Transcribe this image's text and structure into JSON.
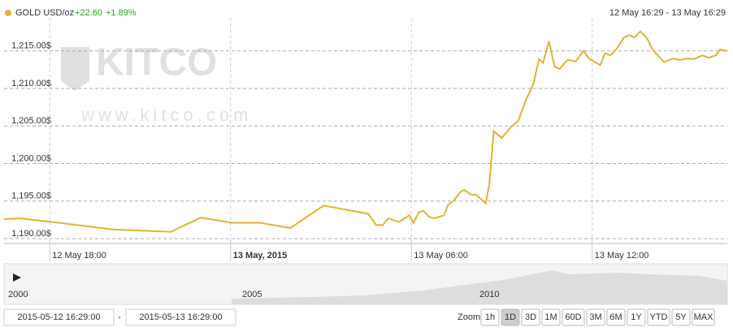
{
  "chart_data": {
    "type": "line",
    "change": "+22.60",
    "change_percent": "+1.89%",
    "range_label": "12 May 16:29 - 13 May 16:29",
    "x": [
      "2015-05-12 16:29",
      "2015-05-12 17:01",
      "2015-05-12 18:06",
      "2015-05-12 20:08",
      "2015-05-12 22:01",
      "2015-05-12 23:01",
      "2015-05-13 00:03",
      "2015-05-13 00:59",
      "2015-05-13 01:59",
      "2015-05-13 03:05",
      "2015-05-13 04:34",
      "2015-05-13 04:50",
      "2015-05-13 05:03",
      "2015-05-13 05:14",
      "2015-05-13 05:35",
      "2015-05-13 05:56",
      "2015-05-13 06:04",
      "2015-05-13 06:15",
      "2015-05-13 06:24",
      "2015-05-13 06:35",
      "2015-05-13 06:45",
      "2015-05-13 07:05",
      "2015-05-13 07:13",
      "2015-05-13 07:24",
      "2015-05-13 07:37",
      "2015-05-13 07:45",
      "2015-05-13 07:57",
      "2015-05-13 08:10",
      "2015-05-13 08:28",
      "2015-05-13 08:35",
      "2015-05-13 08:44",
      "2015-05-13 09:00",
      "2015-05-13 09:17",
      "2015-05-13 09:33",
      "2015-05-13 09:47",
      "2015-05-13 10:03",
      "2015-05-13 10:14",
      "2015-05-13 10:22",
      "2015-05-13 10:34",
      "2015-05-13 10:45",
      "2015-05-13 10:55",
      "2015-05-13 11:11",
      "2015-05-13 11:27",
      "2015-05-13 11:43",
      "2015-05-13 11:53",
      "2015-05-13 12:16",
      "2015-05-13 12:26",
      "2015-05-13 12:36",
      "2015-05-13 12:49",
      "2015-05-13 13:03",
      "2015-05-13 13:14",
      "2015-05-13 13:24",
      "2015-05-13 13:36",
      "2015-05-13 13:49",
      "2015-05-13 14:00",
      "2015-05-13 14:08",
      "2015-05-13 14:23",
      "2015-05-13 14:41",
      "2015-05-13 14:54",
      "2015-05-13 15:08",
      "2015-05-13 15:23",
      "2015-05-13 15:39",
      "2015-05-13 15:52",
      "2015-05-13 16:06",
      "2015-05-13 16:15",
      "2015-05-13 16:24",
      "2015-05-13 16:29"
    ],
    "series": [
      {
        "name": "GOLD USD/oz",
        "color": "#e2b331",
        "values": [
          1192.6,
          1192.7,
          1192.2,
          1191.2,
          1190.9,
          1192.8,
          1192.1,
          1192.1,
          1191.4,
          1194.4,
          1193.3,
          1191.8,
          1191.8,
          1192.7,
          1192.2,
          1193.1,
          1192.1,
          1193.5,
          1193.7,
          1192.9,
          1192.7,
          1193.1,
          1194.5,
          1195.0,
          1196.2,
          1196.5,
          1195.9,
          1195.8,
          1194.7,
          1197.2,
          1204.3,
          1203.4,
          1204.8,
          1205.7,
          1208.3,
          1210.6,
          1213.9,
          1213.4,
          1216.3,
          1212.9,
          1212.6,
          1213.8,
          1213.6,
          1215.0,
          1214.0,
          1213.1,
          1214.7,
          1214.4,
          1215.3,
          1216.8,
          1217.1,
          1216.8,
          1217.6,
          1216.7,
          1215.2,
          1214.6,
          1213.5,
          1214.0,
          1213.8,
          1214.0,
          1213.9,
          1214.4,
          1214.1,
          1214.4,
          1215.2,
          1215.0,
          1215.1
        ]
      }
    ],
    "xlim": [
      "2015-05-12 16:29:00",
      "2015-05-13 16:29:00"
    ],
    "xticks": [
      {
        "value": "2015-05-12 18:00",
        "label": "12 May 18:00"
      },
      {
        "value": "2015-05-13 00:00",
        "label": "13 May, 2015"
      },
      {
        "value": "2015-05-13 06:00",
        "label": "13 May 06:00"
      },
      {
        "value": "2015-05-13 12:00",
        "label": "13 May 12:00"
      }
    ],
    "ylim": [
      1189.35,
      1219.4
    ],
    "yticks": [
      {
        "value": 1190,
        "label": "1,190.00$"
      },
      {
        "value": 1195,
        "label": "1,195.00$"
      },
      {
        "value": 1200,
        "label": "1,200.00$"
      },
      {
        "value": 1205,
        "label": "1,205.00$"
      },
      {
        "value": 1210,
        "label": "1,210.00$"
      },
      {
        "value": 1215,
        "label": "1,215.00$"
      }
    ],
    "grid": true
  },
  "watermark": {
    "brand": "KITCO",
    "url": "www.kitco.com"
  },
  "navigator": {
    "labels": [
      "2000",
      "2005",
      "2010"
    ]
  },
  "range_separator": "-",
  "zoom": {
    "label": "Zoom:",
    "buttons": [
      "1h",
      "1D",
      "3D",
      "1M",
      "60D",
      "3M",
      "6M",
      "1Y",
      "YTD",
      "5Y",
      "MAX"
    ],
    "active": 1
  }
}
